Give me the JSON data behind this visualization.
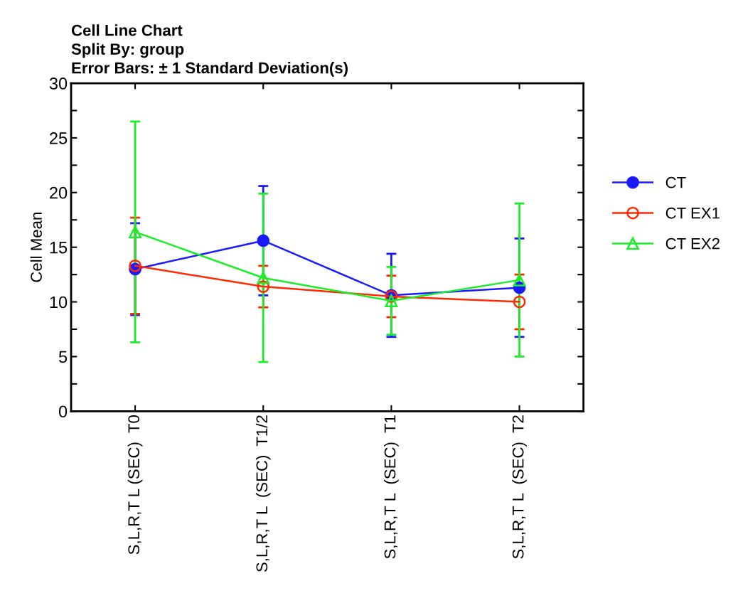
{
  "chart_data": {
    "type": "line",
    "title": "Cell Line Chart",
    "subtitle": "Split By: group\nError Bars: ± 1 Standard Deviation(s)",
    "ylabel": "Cell Mean",
    "categories": [
      "S,L,R,T L (SEC)  T0",
      "S,L,R,T L  (SEC)  T1/2",
      "S,L,R,T L  (SEC)  T1",
      "S,L,R,T L  (SEC)  T2"
    ],
    "series": [
      {
        "name": "CT",
        "color": "#1a1aff",
        "marker": "circle",
        "values": [
          13.0,
          15.6,
          10.6,
          11.3
        ],
        "errors": [
          4.2,
          5.0,
          3.8,
          4.5
        ]
      },
      {
        "name": "CT EX1",
        "color": "#ff2a00",
        "marker": "circle",
        "values": [
          13.3,
          11.4,
          10.5,
          10.0
        ],
        "errors": [
          4.4,
          1.9,
          1.9,
          2.5
        ]
      },
      {
        "name": "CT EX2",
        "color": "#1aee2a",
        "marker": "triangle",
        "values": [
          16.4,
          12.2,
          10.1,
          12.0
        ],
        "errors": [
          10.1,
          7.7,
          3.1,
          7.0
        ]
      }
    ],
    "ylim": [
      0,
      30
    ],
    "yticks": [
      0,
      {
        "value": 2.5,
        "label": null
      },
      5,
      {
        "value": 7.5,
        "label": null
      },
      10,
      {
        "value": 12.5,
        "label": null
      },
      15,
      {
        "value": 17.5,
        "label": null
      },
      20,
      {
        "value": 22.5,
        "label": null
      },
      25,
      {
        "value": 27.5,
        "label": null
      },
      30
    ],
    "grid": false,
    "legend": "right",
    "line_style": "solid"
  }
}
